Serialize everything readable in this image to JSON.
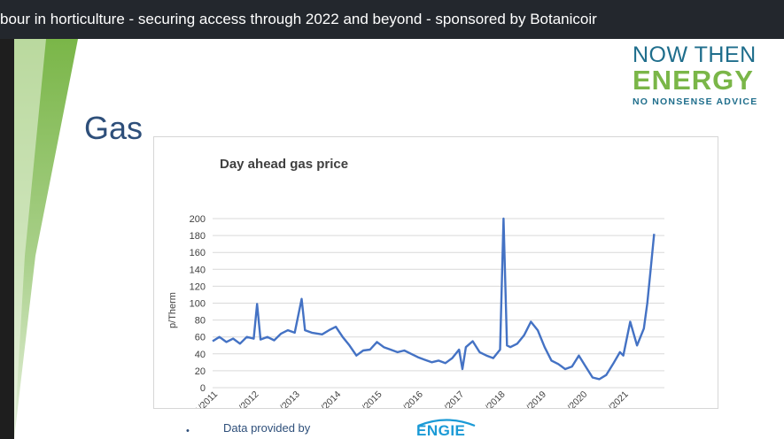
{
  "window": {
    "title": "bour in horticulture - securing access through 2022 and beyond - sponsored by Botanicoir"
  },
  "slide": {
    "heading": "Gas",
    "logo": {
      "line1": "NOW THEN",
      "line2": "ENERGY",
      "tagline": "NO NONSENSE ADVICE"
    },
    "bullet": "•",
    "footer_text": "Data provided by",
    "engie_logo": "ENGIE"
  },
  "colors": {
    "title_bar": "#23272d",
    "heading": "#2e4f7a",
    "series_line": "#4472c4",
    "logo_blue": "#1f6e8c",
    "logo_green": "#7ab648",
    "deco_green": "#7ab648"
  },
  "chart_data": {
    "type": "line",
    "title": "Day ahead gas price",
    "ylabel": "p/Therm",
    "xlabel": "",
    "ylim": [
      0,
      200
    ],
    "yticks": [
      0,
      20,
      40,
      60,
      80,
      100,
      120,
      140,
      160,
      180,
      200
    ],
    "xticks": [
      "01/01/2011",
      "01/01/2012",
      "01/01/2013",
      "01/01/2014",
      "01/01/2015",
      "01/01/2016",
      "01/01/2017",
      "01/01/2018",
      "01/01/2019",
      "01/01/2020",
      "01/01/2021"
    ],
    "grid": true,
    "series": [
      {
        "x": [
          "2011-01",
          "2011-03",
          "2011-05",
          "2011-07",
          "2011-09",
          "2011-11",
          "2012-01",
          "2012-02",
          "2012-03",
          "2012-05",
          "2012-07",
          "2012-09",
          "2012-11",
          "2013-01",
          "2013-03",
          "2013-04",
          "2013-06",
          "2013-09",
          "2013-11",
          "2014-01",
          "2014-03",
          "2014-05",
          "2014-07",
          "2014-09",
          "2014-11",
          "2015-01",
          "2015-03",
          "2015-05",
          "2015-07",
          "2015-09",
          "2015-11",
          "2016-01",
          "2016-03",
          "2016-05",
          "2016-07",
          "2016-09",
          "2016-11",
          "2017-01",
          "2017-02",
          "2017-03",
          "2017-05",
          "2017-07",
          "2017-09",
          "2017-11",
          "2018-01",
          "2018-02",
          "2018-03",
          "2018-04",
          "2018-06",
          "2018-08",
          "2018-10",
          "2018-12",
          "2019-02",
          "2019-04",
          "2019-06",
          "2019-08",
          "2019-10",
          "2019-12",
          "2020-02",
          "2020-04",
          "2020-06",
          "2020-08",
          "2020-10",
          "2020-12",
          "2021-01",
          "2021-03",
          "2021-05",
          "2021-07",
          "2021-08",
          "2021-09",
          "2021-10"
        ],
        "values": [
          55,
          60,
          54,
          58,
          52,
          60,
          58,
          99,
          57,
          60,
          56,
          64,
          68,
          65,
          105,
          68,
          65,
          63,
          68,
          72,
          60,
          50,
          38,
          44,
          45,
          54,
          48,
          45,
          42,
          44,
          40,
          36,
          33,
          30,
          32,
          29,
          35,
          45,
          22,
          48,
          55,
          42,
          38,
          35,
          45,
          200,
          50,
          48,
          52,
          62,
          78,
          68,
          48,
          32,
          28,
          22,
          25,
          38,
          25,
          12,
          10,
          15,
          28,
          42,
          38,
          78,
          50,
          70,
          100,
          140,
          182
        ]
      }
    ]
  }
}
